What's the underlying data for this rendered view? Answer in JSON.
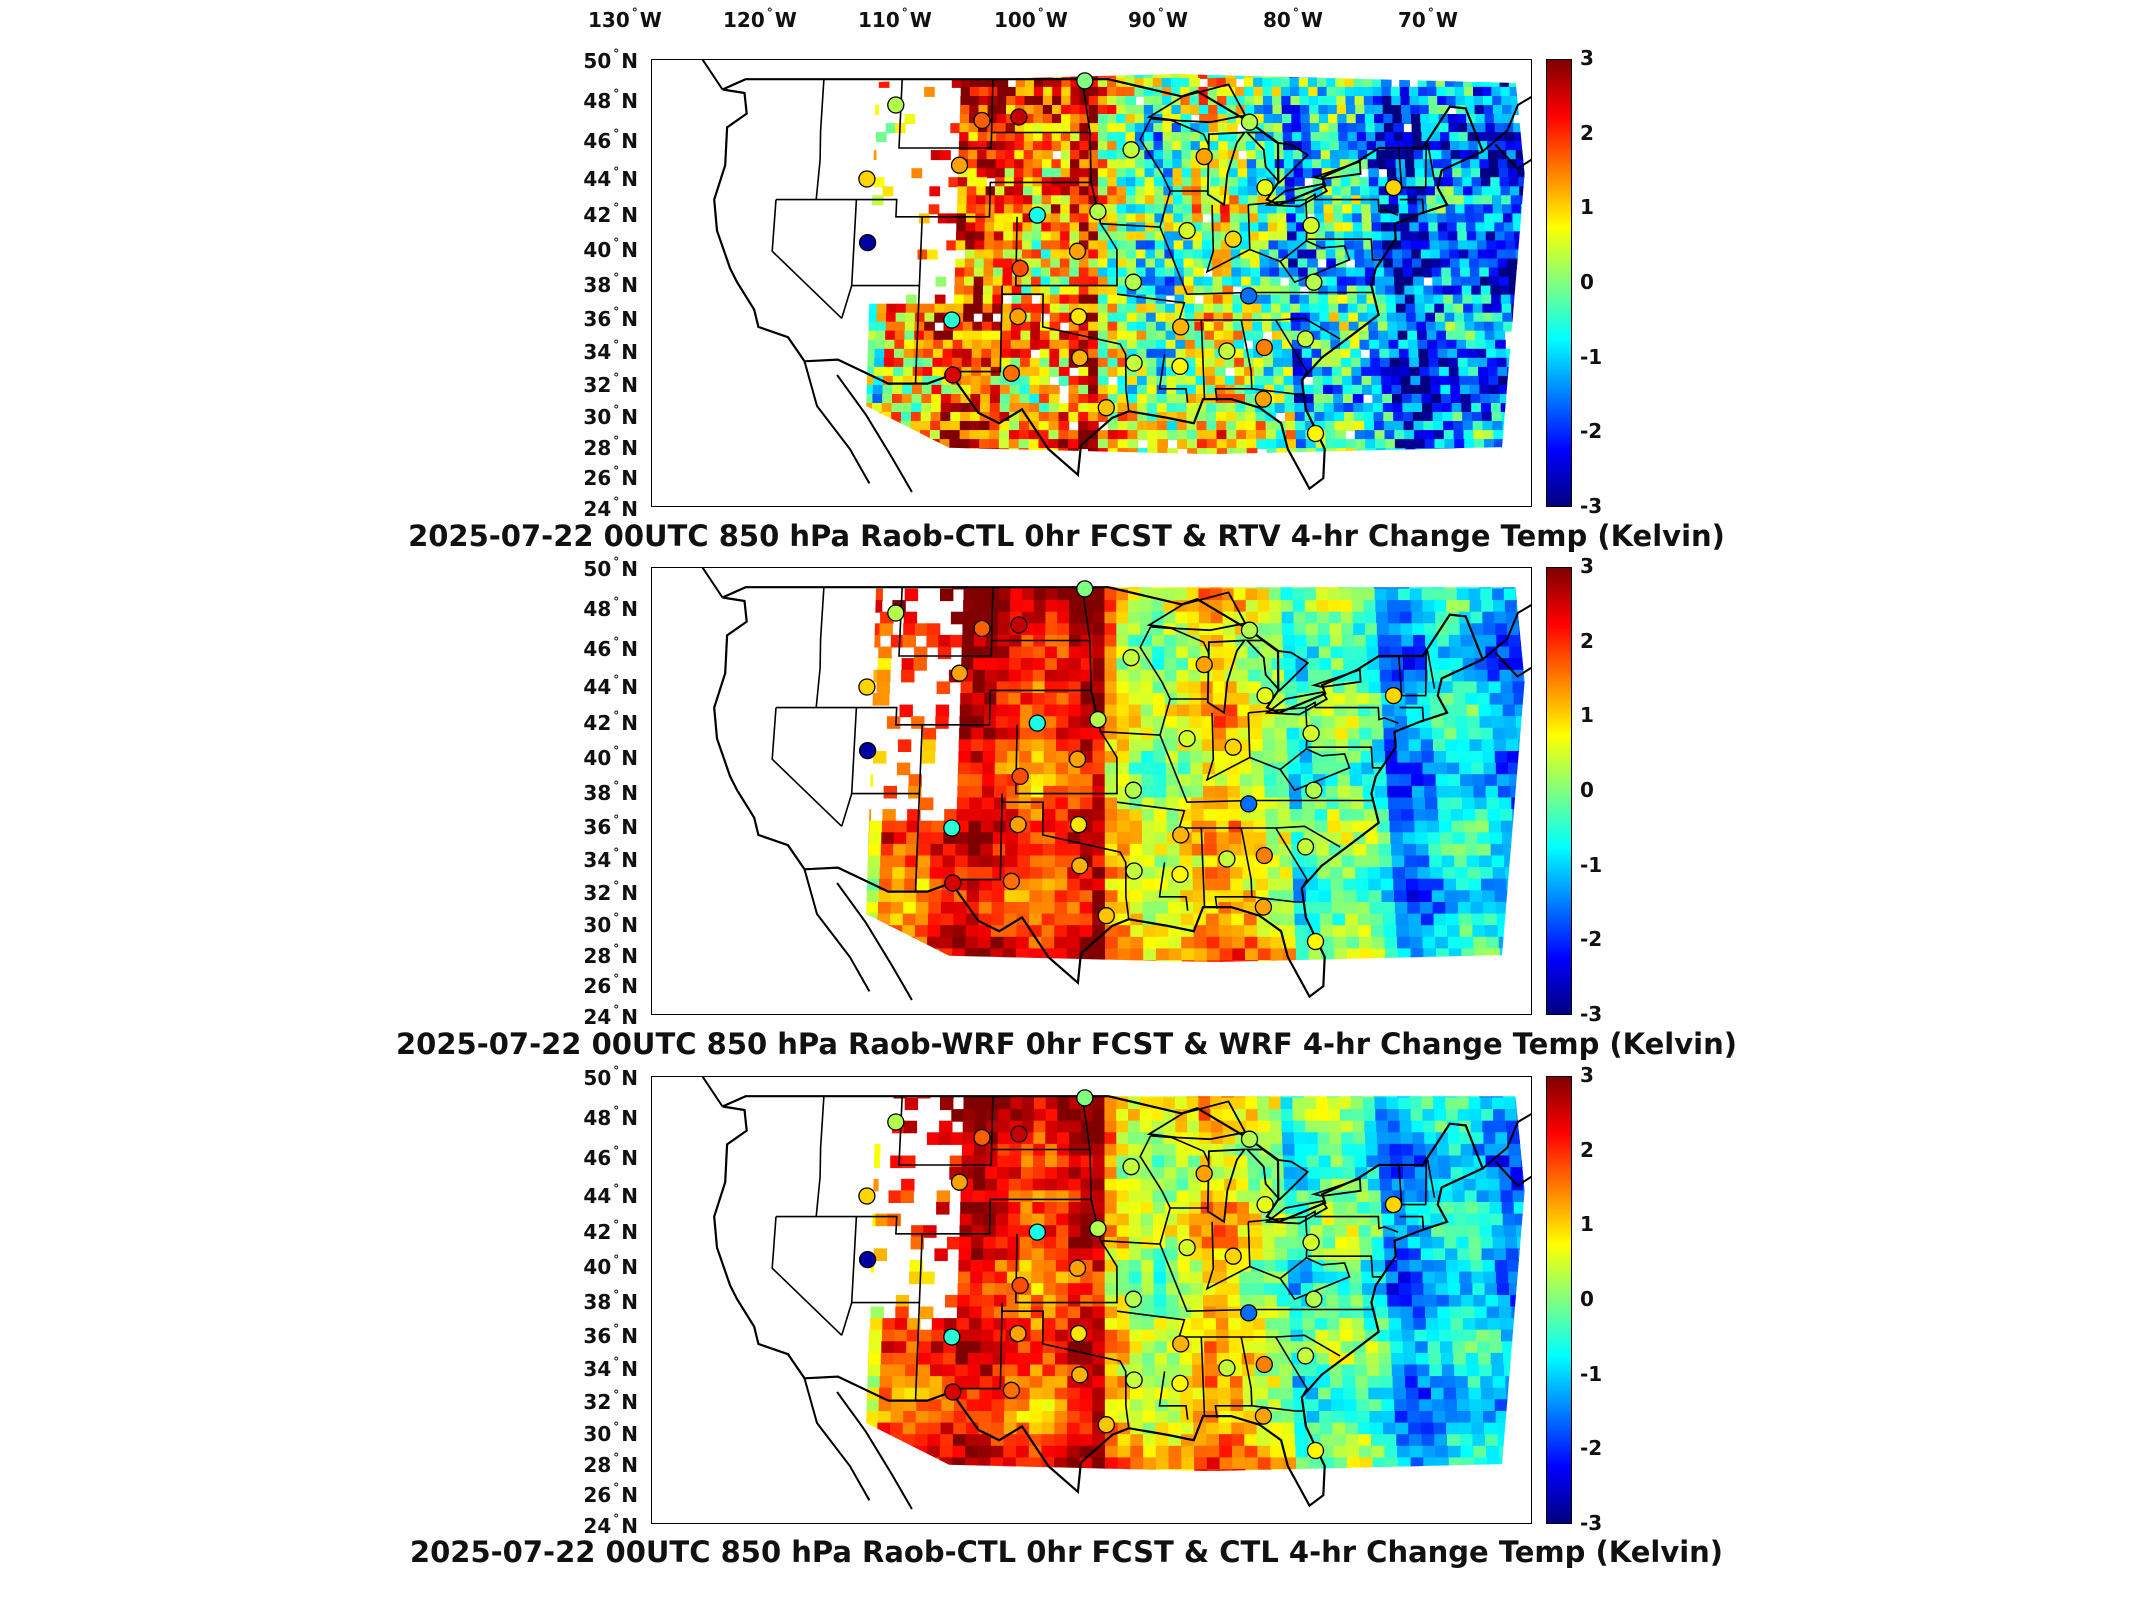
{
  "longitude_labels": [
    "130",
    "120",
    "110",
    "100",
    "90",
    "80",
    "70"
  ],
  "lon_unit": "W",
  "latitude_labels": [
    "50",
    "48",
    "46",
    "44",
    "42",
    "40",
    "38",
    "36",
    "34",
    "32",
    "30",
    "28",
    "26",
    "24"
  ],
  "lat_unit": "N",
  "colorbar": {
    "ticks": [
      "3",
      "2",
      "1",
      "0",
      "-1",
      "-2",
      "-3"
    ],
    "range": [
      -3,
      3
    ],
    "colormap": "jet",
    "colors": [
      "#00007f",
      "#0000ff",
      "#007fff",
      "#00ffff",
      "#7fff7f",
      "#ffff00",
      "#ff7f00",
      "#ff0000",
      "#7f0000"
    ]
  },
  "panels": [
    {
      "title": "2025-07-22 00UTC 850 hPa Raob-CTL 0hr FCST & RTV 4-hr Change Temp (Kelvin)",
      "field": "RTV 4-hr change, patchy satellite-retrieval coverage"
    },
    {
      "title": "2025-07-22 00UTC 850 hPa Raob-WRF 0hr FCST & WRF 4-hr Change Temp (Kelvin)",
      "field": "WRF 4-hr change, smooth model field"
    },
    {
      "title": "2025-07-22 00UTC 850 hPa Raob-CTL 0hr FCST & CTL 4-hr Change Temp (Kelvin)",
      "field": "CTL 4-hr change, smooth model field"
    }
  ],
  "raob_stations": [
    {
      "lon": -111.4,
      "lat": 47.5,
      "value": 0.3
    },
    {
      "lon": -104.8,
      "lat": 46.6,
      "value": 1.7
    },
    {
      "lon": -102.0,
      "lat": 46.8,
      "value": 2.6
    },
    {
      "lon": -97.0,
      "lat": 48.9,
      "value": 0.0
    },
    {
      "lon": -93.5,
      "lat": 44.9,
      "value": 0.4
    },
    {
      "lon": -84.5,
      "lat": 46.5,
      "value": 0.3
    },
    {
      "lon": -88.0,
      "lat": 44.5,
      "value": 1.3
    },
    {
      "lon": -83.5,
      "lat": 42.7,
      "value": 0.6
    },
    {
      "lon": -106.4,
      "lat": 44.0,
      "value": 1.3
    },
    {
      "lon": -113.3,
      "lat": 43.2,
      "value": 1.0
    },
    {
      "lon": -113.0,
      "lat": 39.5,
      "value": -2.8
    },
    {
      "lon": -100.5,
      "lat": 41.1,
      "value": -0.6
    },
    {
      "lon": -96.0,
      "lat": 41.3,
      "value": 0.3
    },
    {
      "lon": -89.4,
      "lat": 40.2,
      "value": 0.5
    },
    {
      "lon": -86.0,
      "lat": 39.7,
      "value": 1.0
    },
    {
      "lon": -80.2,
      "lat": 40.5,
      "value": 0.5
    },
    {
      "lon": -73.9,
      "lat": 42.7,
      "value": 1.0
    },
    {
      "lon": -97.5,
      "lat": 39.0,
      "value": 1.3
    },
    {
      "lon": -101.7,
      "lat": 38.0,
      "value": 1.8
    },
    {
      "lon": -93.4,
      "lat": 37.2,
      "value": 0.3
    },
    {
      "lon": -85.0,
      "lat": 36.4,
      "value": -1.6
    },
    {
      "lon": -80.2,
      "lat": 37.2,
      "value": 0.3
    },
    {
      "lon": -106.6,
      "lat": 35.0,
      "value": -0.5
    },
    {
      "lon": -101.8,
      "lat": 35.2,
      "value": 1.3
    },
    {
      "lon": -97.4,
      "lat": 35.2,
      "value": 0.9
    },
    {
      "lon": -90.0,
      "lat": 34.6,
      "value": 1.2
    },
    {
      "lon": -86.7,
      "lat": 33.2,
      "value": 0.4
    },
    {
      "lon": -84.0,
      "lat": 33.4,
      "value": 1.5
    },
    {
      "lon": -81.0,
      "lat": 33.9,
      "value": 0.4
    },
    {
      "lon": -106.4,
      "lat": 31.8,
      "value": 2.5
    },
    {
      "lon": -102.2,
      "lat": 31.9,
      "value": 1.6
    },
    {
      "lon": -97.3,
      "lat": 32.8,
      "value": 1.2
    },
    {
      "lon": -93.4,
      "lat": 32.5,
      "value": 0.4
    },
    {
      "lon": -90.1,
      "lat": 32.3,
      "value": 0.8
    },
    {
      "lon": -95.4,
      "lat": 29.9,
      "value": 1.1
    },
    {
      "lon": -84.2,
      "lat": 30.4,
      "value": 1.3
    },
    {
      "lon": -80.6,
      "lat": 28.4,
      "value": 0.8
    }
  ]
}
